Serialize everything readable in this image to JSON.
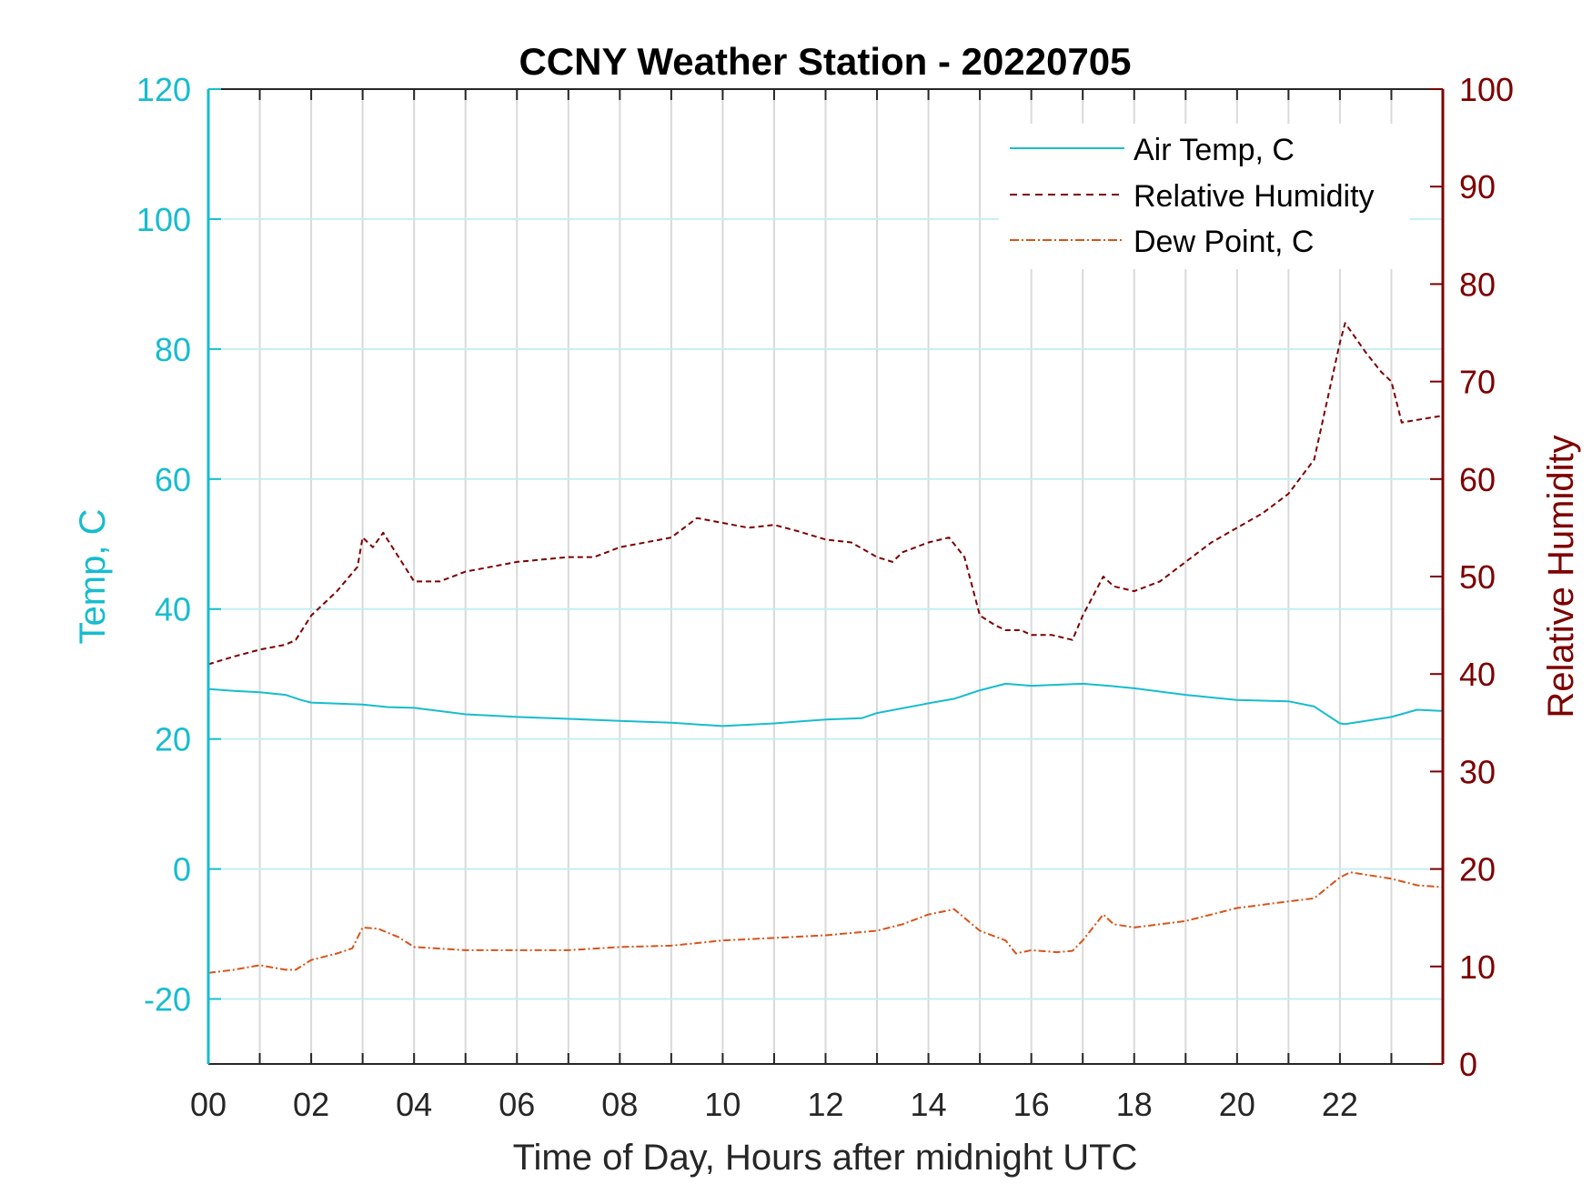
{
  "colors": {
    "temp_axis": "#17bccf",
    "air_temp": "#17bccf",
    "rh_axis": "#7d0000",
    "rh": "#7d0000",
    "dew_point": "#d95319",
    "grid_x": "#d9d9d9",
    "grid_y": "#c6eef3"
  },
  "chart_data": {
    "type": "line",
    "title": "CCNY Weather Station - 20220705",
    "xlabel": "Time of Day, Hours after midnight UTC",
    "ylabel_left": "Temp, C",
    "ylabel_right": "Relative Humidity",
    "xlim": [
      0,
      24
    ],
    "ylim_left": [
      -30,
      120
    ],
    "ylim_right": [
      0,
      100
    ],
    "x_ticks": [
      0,
      2,
      4,
      6,
      8,
      10,
      12,
      14,
      16,
      18,
      20,
      22
    ],
    "x_tick_labels": [
      "00",
      "02",
      "04",
      "06",
      "08",
      "10",
      "12",
      "14",
      "16",
      "18",
      "20",
      "22"
    ],
    "y_left_ticks": [
      -20,
      0,
      20,
      40,
      60,
      80,
      100,
      120
    ],
    "y_left_tick_labels": [
      "-20",
      "0",
      "20",
      "40",
      "60",
      "80",
      "100",
      "120"
    ],
    "y_right_ticks": [
      0,
      10,
      20,
      30,
      40,
      50,
      60,
      70,
      80,
      90,
      100
    ],
    "y_right_tick_labels": [
      "0",
      "10",
      "20",
      "30",
      "40",
      "50",
      "60",
      "70",
      "80",
      "90",
      "100"
    ],
    "grid": true,
    "legend_position": "top-right",
    "series": [
      {
        "name": "Air Temp, C",
        "axis": "left",
        "style": "solid",
        "x": [
          0,
          0.5,
          1,
          1.5,
          1.8,
          2,
          3,
          3.5,
          4,
          5,
          6,
          7,
          8,
          9,
          10,
          11,
          12,
          12.7,
          13,
          14,
          14.5,
          15,
          15.5,
          16,
          17,
          17.5,
          18,
          19,
          20,
          21,
          21.5,
          22,
          22.1,
          23,
          23.5,
          24
        ],
        "y": [
          27.7,
          27.4,
          27.2,
          26.8,
          26,
          25.6,
          25.3,
          24.9,
          24.8,
          23.8,
          23.4,
          23.1,
          22.8,
          22.5,
          22,
          22.4,
          23,
          23.2,
          24,
          25.5,
          26.2,
          27.5,
          28.5,
          28.2,
          28.5,
          28.2,
          27.8,
          26.8,
          26,
          25.8,
          25,
          22.4,
          22.3,
          23.4,
          24.5,
          24.3
        ]
      },
      {
        "name": "Relative Humidity",
        "axis": "right",
        "style": "dashed",
        "x": [
          0,
          0.5,
          1,
          1.5,
          1.7,
          2,
          2.5,
          2.9,
          3,
          3.2,
          3.4,
          3.7,
          4,
          4.5,
          5,
          6,
          7,
          7.5,
          8,
          9,
          9.5,
          10,
          10.5,
          11,
          11.5,
          12,
          12.5,
          13,
          13.3,
          13.5,
          14,
          14.4,
          14.7,
          15,
          15.3,
          15.5,
          15.8,
          16,
          16.4,
          16.8,
          17,
          17.4,
          17.6,
          18,
          18.5,
          19,
          19.5,
          20,
          20.5,
          21,
          21.5,
          22,
          22.1,
          22.5,
          22.8,
          23,
          23.2,
          24
        ],
        "y": [
          41,
          41.8,
          42.5,
          43,
          43.5,
          46,
          48.5,
          51,
          54,
          53,
          54.5,
          52,
          49.5,
          49.5,
          50.5,
          51.5,
          52,
          52,
          53,
          54,
          56,
          55.5,
          55,
          55.3,
          54.6,
          53.8,
          53.5,
          52,
          51.5,
          52.5,
          53.5,
          54,
          52,
          46,
          45,
          44.5,
          44.5,
          44,
          44,
          43.5,
          46,
          50,
          49,
          48.5,
          49.5,
          51.5,
          53.5,
          55,
          56.5,
          58.5,
          62,
          74,
          76,
          73,
          71,
          70,
          65.8,
          66.5
        ]
      },
      {
        "name": "Dew Point, C",
        "axis": "left",
        "style": "dash-dot",
        "x": [
          0,
          0.5,
          1,
          1.5,
          1.7,
          2,
          2.5,
          2.8,
          3,
          3.3,
          3.7,
          4,
          5,
          6,
          7,
          8,
          9,
          10,
          11,
          12,
          13,
          13.5,
          14,
          14.5,
          15,
          15.5,
          15.7,
          16,
          16.5,
          16.8,
          17,
          17.4,
          17.6,
          18,
          19,
          20,
          21,
          21.5,
          22,
          22.2,
          23,
          23.5,
          24
        ],
        "y": [
          -16,
          -15.5,
          -14.8,
          -15.5,
          -15.5,
          -14,
          -13,
          -12.2,
          -9,
          -9.2,
          -10.5,
          -12,
          -12.5,
          -12.5,
          -12.5,
          -12,
          -11.8,
          -11,
          -10.6,
          -10.2,
          -9.5,
          -8.5,
          -7,
          -6.2,
          -9.5,
          -11,
          -13,
          -12.5,
          -12.8,
          -12.6,
          -11,
          -7,
          -8.5,
          -9,
          -8,
          -6,
          -5,
          -4.5,
          -1.3,
          -0.5,
          -1.5,
          -2.5,
          -2.8
        ]
      }
    ]
  }
}
